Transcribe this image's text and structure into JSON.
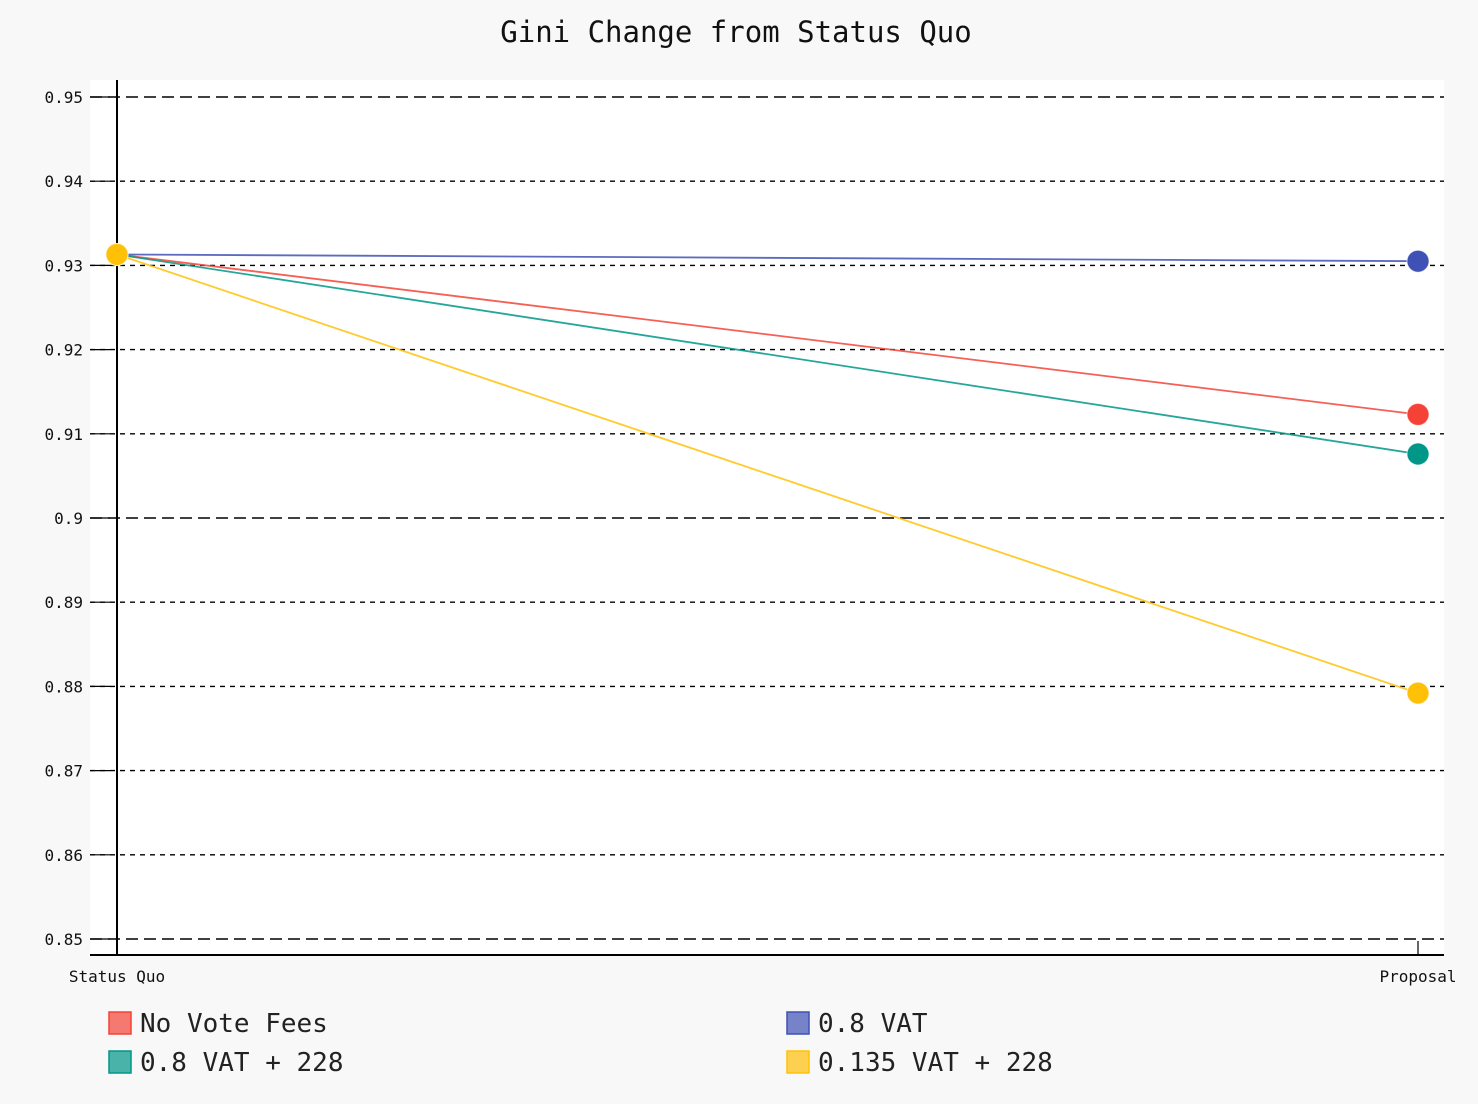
{
  "chart_data": {
    "type": "line",
    "title": "Gini Change from Status Quo",
    "xlabel": "",
    "ylabel": "",
    "categories": [
      "Status Quo",
      "Proposal"
    ],
    "ylim": [
      0.85,
      0.95
    ],
    "yticks": [
      "0.85",
      "0.86",
      "0.87",
      "0.88",
      "0.89",
      "0.9",
      "0.91",
      "0.92",
      "0.93",
      "0.94",
      "0.95"
    ],
    "grid": true,
    "legend_position": "bottom",
    "series": [
      {
        "name": "No Vote Fees",
        "values": [
          0.9313,
          0.9123
        ],
        "color": "#f44336"
      },
      {
        "name": "0.8 VAT",
        "values": [
          0.9313,
          0.9305
        ],
        "color": "#3f51b5"
      },
      {
        "name": "0.8 VAT + 228",
        "values": [
          0.9313,
          0.9076
        ],
        "color": "#009688"
      },
      {
        "name": "0.135 VAT + 228",
        "values": [
          0.9313,
          0.8792
        ],
        "color": "#ffc107"
      }
    ]
  }
}
